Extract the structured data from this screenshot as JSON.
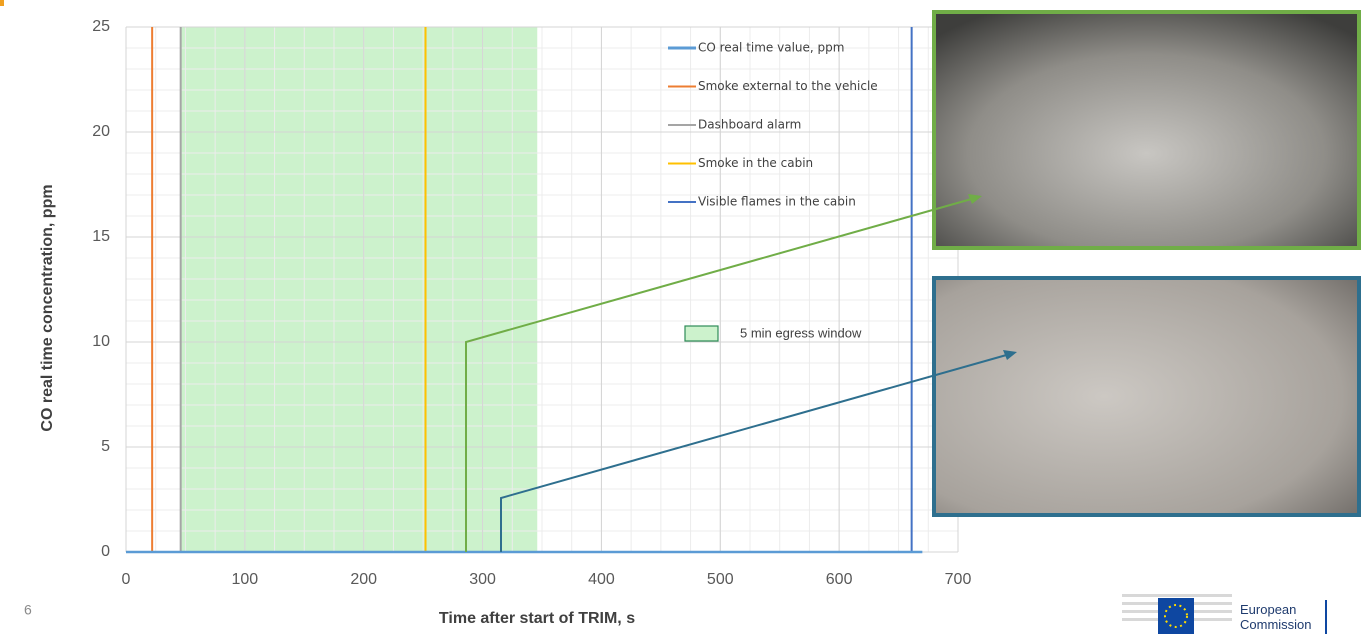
{
  "chart_data": {
    "type": "line",
    "x_label": "Time after start of TRIM, s",
    "y_label": "CO real time concentration, ppm",
    "xlim": [
      0,
      700
    ],
    "xticks": [
      0,
      100,
      200,
      300,
      400,
      500,
      600,
      700
    ],
    "ylim": [
      0,
      25
    ],
    "yticks": [
      0,
      5,
      10,
      15,
      20,
      25
    ],
    "grid": true,
    "minor_grid": true,
    "series": [
      {
        "name": "CO real time value, ppm",
        "color": "#5b9bd5",
        "x": [
          0,
          670
        ],
        "values": [
          0,
          0
        ]
      }
    ],
    "events": [
      {
        "name": "Smoke external to the vehicle",
        "color": "#ed7d31",
        "x": 22
      },
      {
        "name": "Dashboard alarm",
        "color": "#a5a5a5",
        "x": 46
      },
      {
        "name": "Smoke in the cabin",
        "color": "#ffc000",
        "x": 252
      },
      {
        "name": "Visible flames in the cabin",
        "color": "#4472c4",
        "x": 661
      }
    ],
    "band": {
      "name": "5 min egress window",
      "color": "#ccf2cc",
      "x": [
        46,
        346
      ]
    }
  },
  "slide": {
    "page_number": "6",
    "logo_text": "European Commission"
  }
}
